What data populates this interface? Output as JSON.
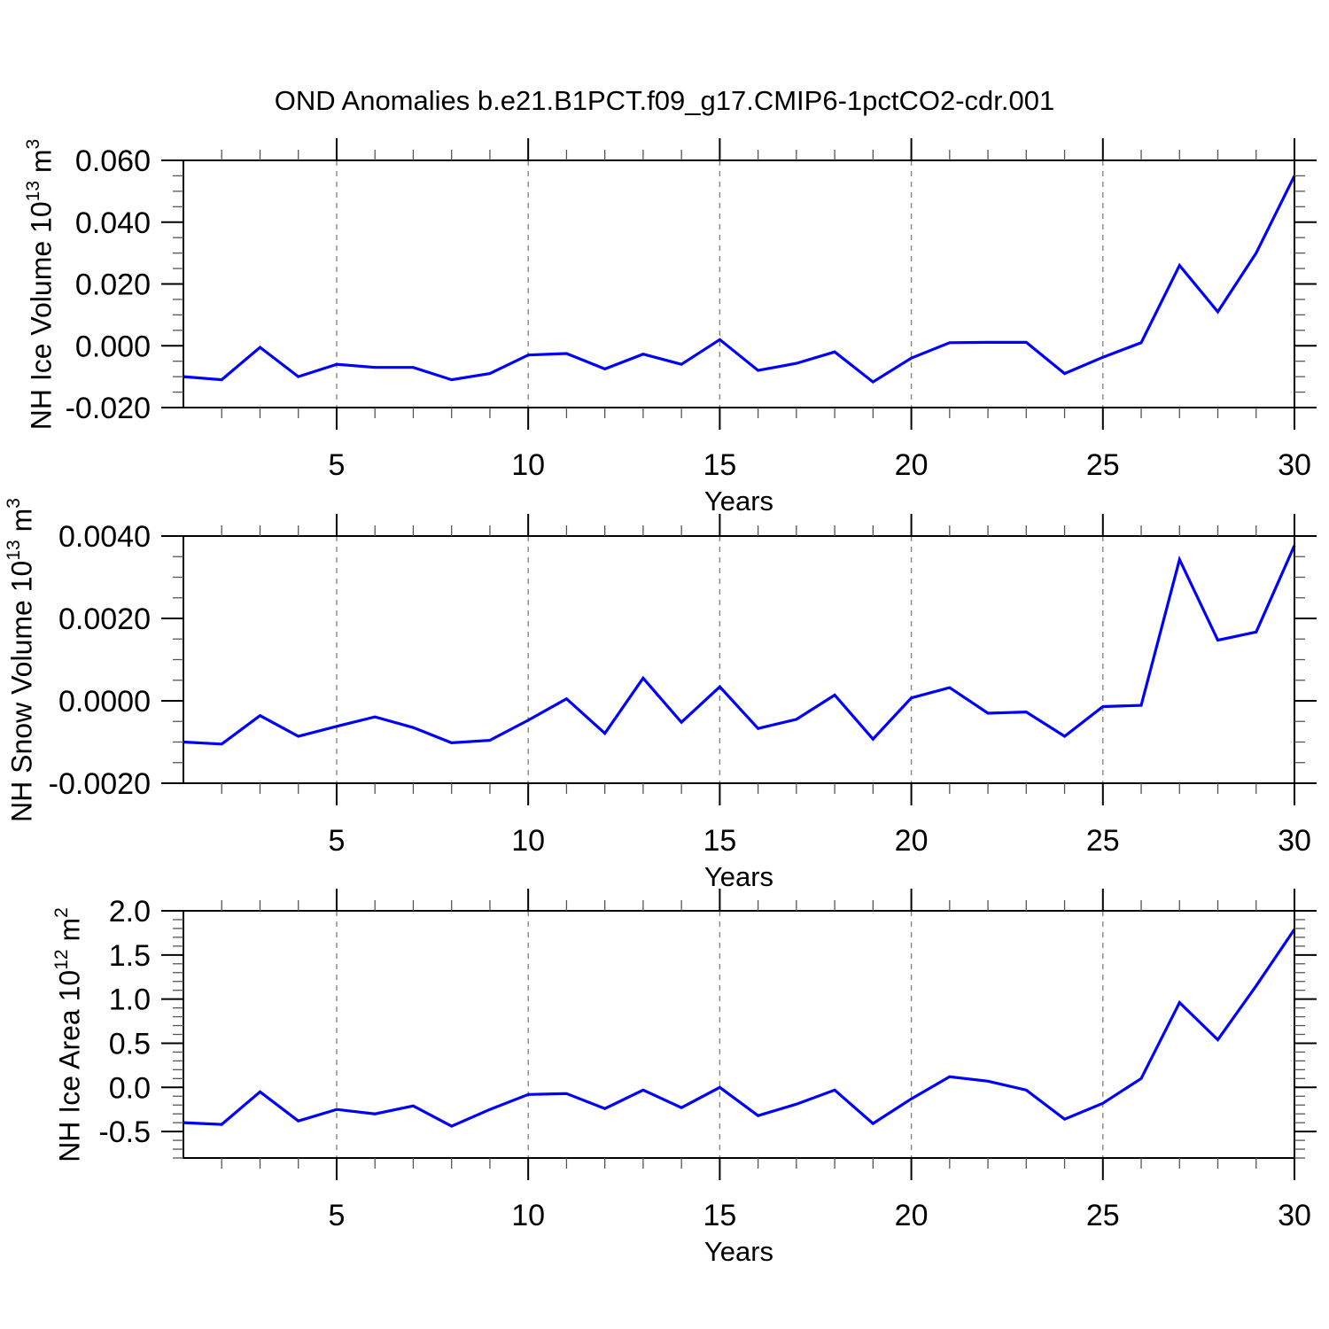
{
  "title": "OND Anomalies b.e21.B1PCT.f09_g17.CMIP6-1pctCO2-cdr.001",
  "line_color": "#0000ff",
  "grid_color": "#808080",
  "chart_data": [
    {
      "type": "line",
      "title": "NH Ice Volume",
      "ylabel_parts": [
        "NH Ice Volume 10",
        "13",
        " m",
        "3"
      ],
      "xlabel": "Years",
      "x": [
        1,
        2,
        3,
        4,
        5,
        6,
        7,
        8,
        9,
        10,
        11,
        12,
        13,
        14,
        15,
        16,
        17,
        18,
        19,
        20,
        21,
        22,
        23,
        24,
        25,
        26,
        27,
        28,
        29,
        30
      ],
      "values": [
        -0.01,
        -0.011,
        -0.0005,
        -0.01,
        -0.006,
        -0.007,
        -0.007,
        -0.011,
        -0.009,
        -0.003,
        -0.0025,
        -0.0075,
        -0.0027,
        -0.006,
        0.002,
        -0.008,
        -0.0057,
        -0.002,
        -0.0117,
        -0.004,
        0.001,
        0.0011,
        0.0011,
        -0.009,
        -0.0037,
        0.001,
        0.026,
        0.011,
        0.03,
        0.055
      ],
      "ylim": [
        -0.02,
        0.06
      ],
      "xlim": [
        1,
        30
      ],
      "yticks": [
        {
          "label": "0.060",
          "value": 0.06
        },
        {
          "label": "0.040",
          "value": 0.04
        },
        {
          "label": "0.020",
          "value": 0.02
        },
        {
          "label": "0.000",
          "value": 0.0
        },
        {
          "label": "-0.020",
          "value": -0.02
        }
      ],
      "y_minor_step": 0.005,
      "grid": "vertical-dashed-at-x-majors"
    },
    {
      "type": "line",
      "title": "NH Snow Volume",
      "ylabel_parts": [
        "NH Snow Volume 10",
        "13",
        " m",
        "3"
      ],
      "xlabel": "Years",
      "x": [
        1,
        2,
        3,
        4,
        5,
        6,
        7,
        8,
        9,
        10,
        11,
        12,
        13,
        14,
        15,
        16,
        17,
        18,
        19,
        20,
        21,
        22,
        23,
        24,
        25,
        26,
        27,
        28,
        29,
        30
      ],
      "values": [
        -0.001,
        -0.00105,
        -0.00036,
        -0.00086,
        -0.00062,
        -0.00039,
        -0.00065,
        -0.00102,
        -0.00096,
        -0.00047,
        5e-05,
        -0.00079,
        0.00055,
        -0.00052,
        0.00034,
        -0.00067,
        -0.00045,
        0.00014,
        -0.00093,
        7e-05,
        0.00032,
        -0.0003,
        -0.00027,
        -0.00086,
        -0.00014,
        -0.00011,
        0.00343,
        0.00147,
        0.00167,
        0.00377
      ],
      "ylim": [
        -0.002,
        0.004
      ],
      "xlim": [
        1,
        30
      ],
      "yticks": [
        {
          "label": "0.0040",
          "value": 0.004
        },
        {
          "label": "0.0020",
          "value": 0.002
        },
        {
          "label": "0.0000",
          "value": 0.0
        },
        {
          "label": "-0.0020",
          "value": -0.002
        }
      ],
      "y_minor_step": 0.0005,
      "grid": "vertical-dashed-at-x-majors"
    },
    {
      "type": "line",
      "title": "NH Ice Area",
      "ylabel_parts": [
        "NH Ice Area 10",
        "12",
        " m",
        "2"
      ],
      "xlabel": "Years",
      "x": [
        1,
        2,
        3,
        4,
        5,
        6,
        7,
        8,
        9,
        10,
        11,
        12,
        13,
        14,
        15,
        16,
        17,
        18,
        19,
        20,
        21,
        22,
        23,
        24,
        25,
        26,
        27,
        28,
        29,
        30
      ],
      "values": [
        -0.4,
        -0.42,
        -0.05,
        -0.38,
        -0.25,
        -0.3,
        -0.21,
        -0.44,
        -0.25,
        -0.08,
        -0.07,
        -0.24,
        -0.03,
        -0.23,
        0.0,
        -0.32,
        -0.19,
        -0.03,
        -0.41,
        -0.13,
        0.12,
        0.07,
        -0.03,
        -0.36,
        -0.18,
        0.1,
        0.96,
        0.54,
        1.15,
        1.79
      ],
      "ylim": [
        -0.8,
        2.0
      ],
      "xlim": [
        1,
        30
      ],
      "yticks": [
        {
          "label": "2.0",
          "value": 2.0
        },
        {
          "label": "1.5",
          "value": 1.5
        },
        {
          "label": "1.0",
          "value": 1.0
        },
        {
          "label": "0.5",
          "value": 0.5
        },
        {
          "label": "0.0",
          "value": 0.0
        },
        {
          "label": "-0.5",
          "value": -0.5
        }
      ],
      "y_minor_step": 0.1,
      "grid": "vertical-dashed-at-x-majors"
    }
  ],
  "xaxis": {
    "major_ticks": [
      {
        "label": "5",
        "value": 5
      },
      {
        "label": "10",
        "value": 10
      },
      {
        "label": "15",
        "value": 15
      },
      {
        "label": "20",
        "value": 20
      },
      {
        "label": "25",
        "value": 25
      },
      {
        "label": "30",
        "value": 30
      }
    ],
    "minor_step": 1,
    "grid_values": [
      5,
      10,
      15,
      20,
      25
    ]
  }
}
